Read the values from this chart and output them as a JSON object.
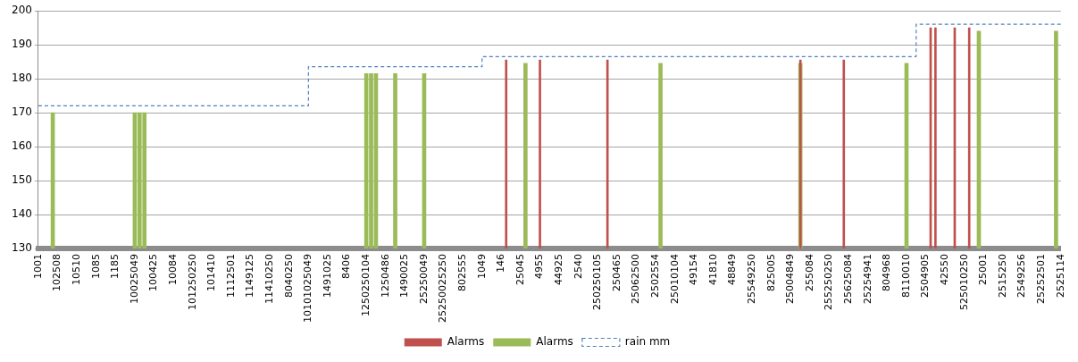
{
  "chart_data": {
    "type": "bar",
    "categories": [
      "1001",
      null,
      null,
      null,
      "102508",
      null,
      null,
      null,
      "10510",
      null,
      null,
      null,
      "1085",
      null,
      null,
      null,
      "1185",
      null,
      null,
      null,
      "10025049",
      null,
      null,
      null,
      "100425",
      null,
      null,
      null,
      "10084",
      null,
      null,
      null,
      "101250250",
      null,
      null,
      null,
      "101410",
      null,
      null,
      null,
      "1112501",
      null,
      null,
      null,
      "1149125",
      null,
      null,
      null,
      "11410250",
      null,
      null,
      null,
      "8040250",
      null,
      null,
      null,
      "10101025049",
      null,
      null,
      null,
      "1491025",
      null,
      null,
      null,
      "8406",
      null,
      null,
      null,
      "1250250104",
      null,
      null,
      null,
      "1250486",
      null,
      null,
      null,
      "1490025",
      null,
      null,
      null,
      "25250049",
      null,
      null,
      null,
      "25250025250",
      null,
      null,
      null,
      "802555",
      null,
      null,
      null,
      "1049",
      null,
      null,
      null,
      "146",
      null,
      null,
      null,
      "25045",
      null,
      null,
      null,
      "4955",
      null,
      null,
      null,
      "44925",
      null,
      null,
      null,
      "2540",
      null,
      null,
      null,
      "250250105",
      null,
      null,
      null,
      "250465",
      null,
      null,
      null,
      "25062500",
      null,
      null,
      null,
      "2502554",
      null,
      null,
      null,
      "25010104",
      null,
      null,
      null,
      "49154",
      null,
      null,
      null,
      "41810",
      null,
      null,
      null,
      "48849",
      null,
      null,
      null,
      "25549250",
      null,
      null,
      null,
      "825005",
      null,
      null,
      null,
      "25004849",
      null,
      null,
      null,
      "255084",
      null,
      null,
      null,
      "255250250",
      null,
      null,
      null,
      "25625084",
      null,
      null,
      null,
      "25254941",
      null,
      null,
      null,
      "804968",
      null,
      null,
      null,
      "8110010",
      null,
      null,
      null,
      "2504905",
      null,
      null,
      null,
      "42550",
      null,
      null,
      null,
      "525010250",
      null,
      null,
      null,
      "25001",
      null,
      null,
      null,
      "2515250",
      null,
      null,
      null,
      "2549256",
      null,
      null,
      null,
      "25252501",
      null,
      null,
      null,
      "2525114"
    ],
    "series": [
      {
        "name": "Alarms",
        "color": "#c0504d",
        "values": [
          null,
          null,
          null,
          null,
          null,
          null,
          null,
          null,
          null,
          null,
          null,
          null,
          null,
          null,
          null,
          null,
          null,
          null,
          null,
          null,
          null,
          null,
          null,
          null,
          null,
          null,
          null,
          null,
          null,
          null,
          null,
          null,
          null,
          null,
          null,
          null,
          null,
          null,
          null,
          null,
          null,
          null,
          null,
          null,
          null,
          null,
          null,
          null,
          null,
          null,
          null,
          null,
          null,
          null,
          null,
          null,
          null,
          null,
          null,
          null,
          null,
          null,
          null,
          null,
          null,
          null,
          null,
          null,
          null,
          null,
          null,
          null,
          null,
          null,
          null,
          null,
          null,
          null,
          null,
          null,
          null,
          null,
          null,
          null,
          null,
          null,
          null,
          null,
          null,
          null,
          null,
          null,
          null,
          null,
          null,
          null,
          null,
          185.5,
          null,
          null,
          null,
          null,
          null,
          null,
          185.5,
          null,
          null,
          null,
          null,
          null,
          null,
          null,
          null,
          null,
          null,
          null,
          null,
          null,
          185.5,
          null,
          null,
          null,
          null,
          null,
          null,
          null,
          null,
          null,
          null,
          null,
          null,
          null,
          null,
          null,
          null,
          null,
          null,
          null,
          null,
          null,
          null,
          null,
          null,
          null,
          null,
          null,
          null,
          null,
          null,
          null,
          null,
          null,
          null,
          null,
          null,
          null,
          null,
          null,
          185.5,
          null,
          null,
          null,
          null,
          null,
          null,
          null,
          null,
          185.5,
          null,
          null,
          null,
          null,
          null,
          null,
          null,
          null,
          null,
          null,
          null,
          null,
          null,
          null,
          null,
          null,
          null,
          195,
          195,
          null,
          null,
          null,
          195,
          null,
          null,
          195,
          null,
          null,
          null,
          null,
          null,
          null,
          null,
          null,
          null,
          null,
          null,
          null,
          null,
          null,
          null,
          null,
          null,
          null,
          null
        ]
      },
      {
        "name": "Alarms",
        "color": "#9bbb59",
        "values": [
          null,
          null,
          null,
          170,
          null,
          null,
          null,
          null,
          null,
          null,
          null,
          null,
          null,
          null,
          null,
          null,
          null,
          null,
          null,
          null,
          170,
          170,
          170,
          null,
          null,
          null,
          null,
          null,
          null,
          null,
          null,
          null,
          null,
          null,
          null,
          null,
          null,
          null,
          null,
          null,
          null,
          null,
          null,
          null,
          null,
          null,
          null,
          null,
          null,
          null,
          null,
          null,
          null,
          null,
          null,
          null,
          null,
          null,
          null,
          null,
          null,
          null,
          null,
          null,
          null,
          null,
          null,
          null,
          181.5,
          181.5,
          181.5,
          null,
          null,
          null,
          181.5,
          null,
          null,
          null,
          null,
          null,
          181.5,
          null,
          null,
          null,
          null,
          null,
          null,
          null,
          null,
          null,
          null,
          null,
          null,
          null,
          null,
          null,
          null,
          null,
          null,
          null,
          null,
          184.5,
          null,
          null,
          null,
          null,
          null,
          null,
          null,
          null,
          null,
          null,
          null,
          null,
          null,
          null,
          null,
          null,
          null,
          null,
          null,
          null,
          null,
          null,
          null,
          null,
          null,
          null,
          null,
          184.5,
          null,
          null,
          null,
          null,
          null,
          null,
          null,
          null,
          null,
          null,
          null,
          null,
          null,
          null,
          null,
          null,
          null,
          null,
          null,
          null,
          null,
          null,
          null,
          null,
          null,
          null,
          null,
          null,
          184.5,
          null,
          null,
          null,
          null,
          null,
          null,
          null,
          null,
          null,
          null,
          null,
          null,
          null,
          null,
          null,
          null,
          null,
          null,
          null,
          null,
          null,
          184.5,
          null,
          null,
          null,
          null,
          null,
          null,
          null,
          null,
          null,
          null,
          null,
          null,
          null,
          null,
          194,
          null,
          null,
          null,
          null,
          null,
          null,
          null,
          null,
          null,
          null,
          null,
          null,
          null,
          null,
          null,
          194,
          null
        ]
      },
      {
        "name": "rain mm",
        "type": "step",
        "color": "#4f81bd",
        "line_style": "dashed",
        "values": [
          172,
          172,
          172,
          172,
          172,
          172,
          172,
          172,
          172,
          172,
          172,
          172,
          172,
          172,
          172,
          172,
          172,
          172,
          172,
          172,
          172,
          172,
          172,
          172,
          172,
          172,
          172,
          172,
          172,
          172,
          172,
          172,
          172,
          172,
          172,
          172,
          172,
          172,
          172,
          172,
          172,
          172,
          172,
          172,
          172,
          172,
          172,
          172,
          172,
          172,
          172,
          172,
          172,
          172,
          172,
          172,
          183.5,
          183.5,
          183.5,
          183.5,
          183.5,
          183.5,
          183.5,
          183.5,
          183.5,
          183.5,
          183.5,
          183.5,
          183.5,
          183.5,
          183.5,
          183.5,
          183.5,
          183.5,
          183.5,
          183.5,
          183.5,
          183.5,
          183.5,
          183.5,
          183.5,
          183.5,
          183.5,
          183.5,
          183.5,
          183.5,
          183.5,
          183.5,
          183.5,
          183.5,
          183.5,
          183.5,
          186.5,
          186.5,
          186.5,
          186.5,
          186.5,
          186.5,
          186.5,
          186.5,
          186.5,
          186.5,
          186.5,
          186.5,
          186.5,
          186.5,
          186.5,
          186.5,
          186.5,
          186.5,
          186.5,
          186.5,
          186.5,
          186.5,
          186.5,
          186.5,
          186.5,
          186.5,
          186.5,
          186.5,
          186.5,
          186.5,
          186.5,
          186.5,
          186.5,
          186.5,
          186.5,
          186.5,
          186.5,
          186.5,
          186.5,
          186.5,
          186.5,
          186.5,
          186.5,
          186.5,
          186.5,
          186.5,
          186.5,
          186.5,
          186.5,
          186.5,
          186.5,
          186.5,
          186.5,
          186.5,
          186.5,
          186.5,
          186.5,
          186.5,
          186.5,
          186.5,
          186.5,
          186.5,
          186.5,
          186.5,
          186.5,
          186.5,
          186.5,
          186.5,
          186.5,
          186.5,
          186.5,
          186.5,
          186.5,
          186.5,
          186.5,
          186.5,
          186.5,
          186.5,
          186.5,
          186.5,
          186.5,
          186.5,
          186.5,
          186.5,
          186.5,
          186.5,
          186.5,
          186.5,
          186.5,
          186.5,
          196,
          196,
          196,
          196,
          196,
          196,
          196,
          196,
          196,
          196,
          196,
          196,
          196,
          196,
          196,
          196,
          196,
          196,
          196,
          196,
          196,
          196,
          196,
          196,
          196,
          196,
          196,
          196,
          196,
          196,
          196
        ]
      }
    ],
    "ylim": [
      130,
      200
    ],
    "yticks": [
      130,
      140,
      150,
      160,
      170,
      180,
      190,
      200
    ],
    "grid": "y",
    "legend": "bottom",
    "marker": "none"
  }
}
